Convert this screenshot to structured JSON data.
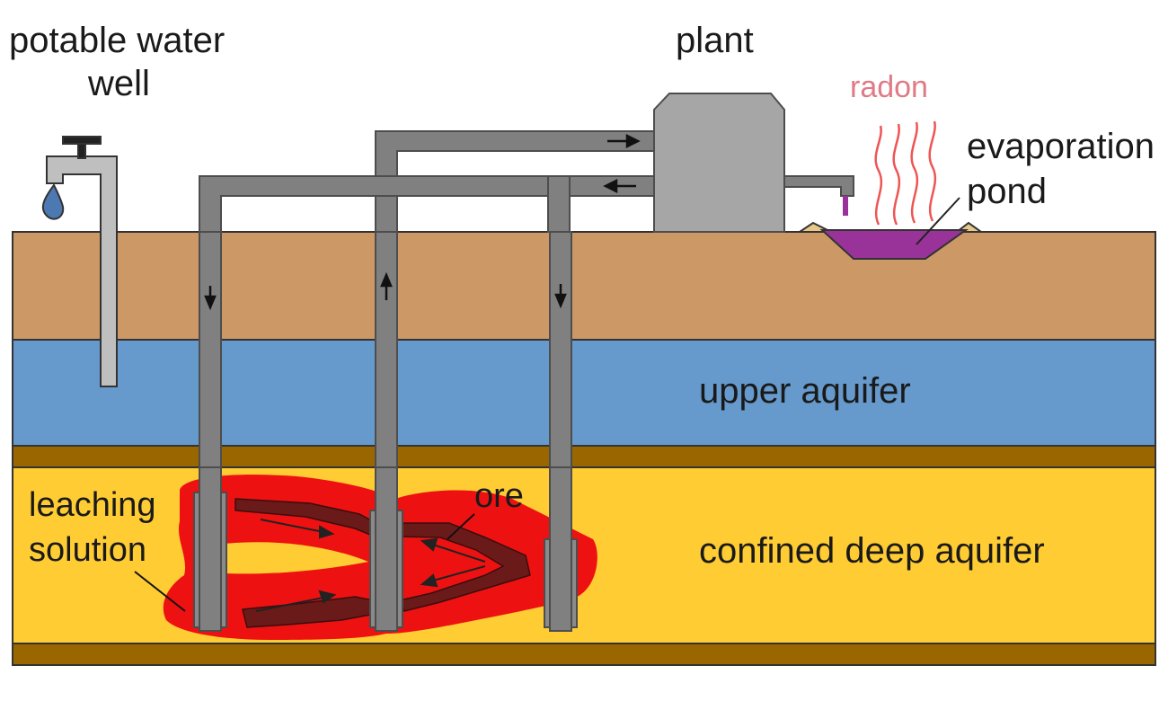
{
  "labels": {
    "potable_water_well_line1": "potable water",
    "potable_water_well_line2": "well",
    "plant": "plant",
    "radon": "radon",
    "evaporation_pond_line1": "evaporation",
    "evaporation_pond_line2": "pond",
    "upper_aquifer": "upper aquifer",
    "confined_deep_aquifer": "confined deep aquifer",
    "leaching_solution_line1": "leaching",
    "leaching_solution_line2": "solution",
    "ore": "ore"
  },
  "colors": {
    "topsoil": "#cc9966",
    "upper_aquifer": "#6699cc",
    "confining_layer": "#996600",
    "deep_aquifer": "#ffcc33",
    "pipe": "#808080",
    "pipe_dark": "#4d4d4d",
    "plant": "#a6a6a6",
    "leach_zone": "#ee1111",
    "ore": "#6b1a1a",
    "pond": "#993399",
    "radon": "#e07a86",
    "water_drop": "#4d79b3",
    "well_pipe": "#bfbfbf"
  }
}
